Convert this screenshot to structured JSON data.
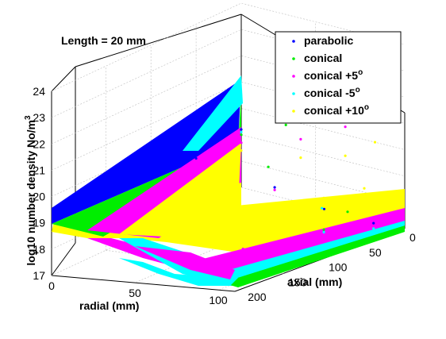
{
  "annotation": "Length = 20 mm",
  "chart_data": {
    "type": "scatter",
    "projection": "3d",
    "title": "",
    "xlabel": "radial (mm)",
    "ylabel": "axial (mm)",
    "zlabel": "log10 number density No/m",
    "zlabel_sup": "3",
    "xlim": [
      0,
      110
    ],
    "ylim": [
      0,
      210
    ],
    "zlim": [
      17,
      24
    ],
    "xticks": [
      "0",
      "50",
      "100"
    ],
    "yticks": [
      "0",
      "50",
      "100",
      "150",
      "200"
    ],
    "zticks": [
      "17",
      "18",
      "19",
      "20",
      "21",
      "22",
      "23",
      "24"
    ],
    "grid": true,
    "legend_position": "top-right",
    "series": [
      {
        "name": "parabolic",
        "sup": "",
        "color": "#0000ff",
        "points": [
          [
            0,
            0,
            19.2
          ],
          [
            25,
            0,
            20.0
          ],
          [
            50,
            0,
            21.0
          ],
          [
            75,
            0,
            22.0
          ],
          [
            95,
            0,
            23.0
          ],
          [
            105,
            0,
            23.6
          ],
          [
            0,
            50,
            18.9
          ],
          [
            40,
            30,
            18.0
          ],
          [
            70,
            25,
            17.5
          ],
          [
            100,
            20,
            17.3
          ]
        ]
      },
      {
        "name": "conical",
        "sup": "",
        "color": "#00ee00",
        "points": [
          [
            0,
            0,
            19.0
          ],
          [
            30,
            0,
            19.8
          ],
          [
            60,
            0,
            20.8
          ],
          [
            85,
            0,
            21.8
          ],
          [
            100,
            0,
            22.8
          ],
          [
            105,
            0,
            23.5
          ],
          [
            30,
            20,
            18.5
          ],
          [
            80,
            15,
            17.4
          ],
          [
            110,
            100,
            18.1
          ]
        ]
      },
      {
        "name": "conical +5",
        "sup": "o",
        "color": "#ff00ff",
        "points": [
          [
            0,
            0,
            18.7
          ],
          [
            40,
            0,
            19.4
          ],
          [
            70,
            0,
            20.3
          ],
          [
            95,
            0,
            21.5
          ],
          [
            105,
            0,
            22.6
          ],
          [
            40,
            30,
            17.9
          ],
          [
            110,
            50,
            17.5
          ],
          [
            110,
            150,
            18.1
          ],
          [
            110,
            200,
            18.5
          ]
        ]
      },
      {
        "name": "conical -5",
        "sup": "o",
        "color": "#00ffff",
        "points": [
          [
            0,
            0,
            19.1
          ],
          [
            30,
            0,
            20.0
          ],
          [
            60,
            0,
            21.0
          ],
          [
            90,
            0,
            22.2
          ],
          [
            105,
            0,
            23.4
          ],
          [
            60,
            10,
            17.2
          ],
          [
            100,
            20,
            17.1
          ],
          [
            110,
            100,
            18.0
          ]
        ]
      },
      {
        "name": "conical +10",
        "sup": "o",
        "color": "#ffff00",
        "points": [
          [
            0,
            0,
            18.4
          ],
          [
            40,
            0,
            18.7
          ],
          [
            70,
            0,
            19.2
          ],
          [
            90,
            0,
            20.0
          ],
          [
            100,
            0,
            21.2
          ],
          [
            105,
            0,
            22.4
          ],
          [
            110,
            50,
            19.1
          ],
          [
            110,
            100,
            19.3
          ],
          [
            110,
            150,
            19.4
          ],
          [
            110,
            200,
            19.5
          ]
        ]
      }
    ]
  }
}
